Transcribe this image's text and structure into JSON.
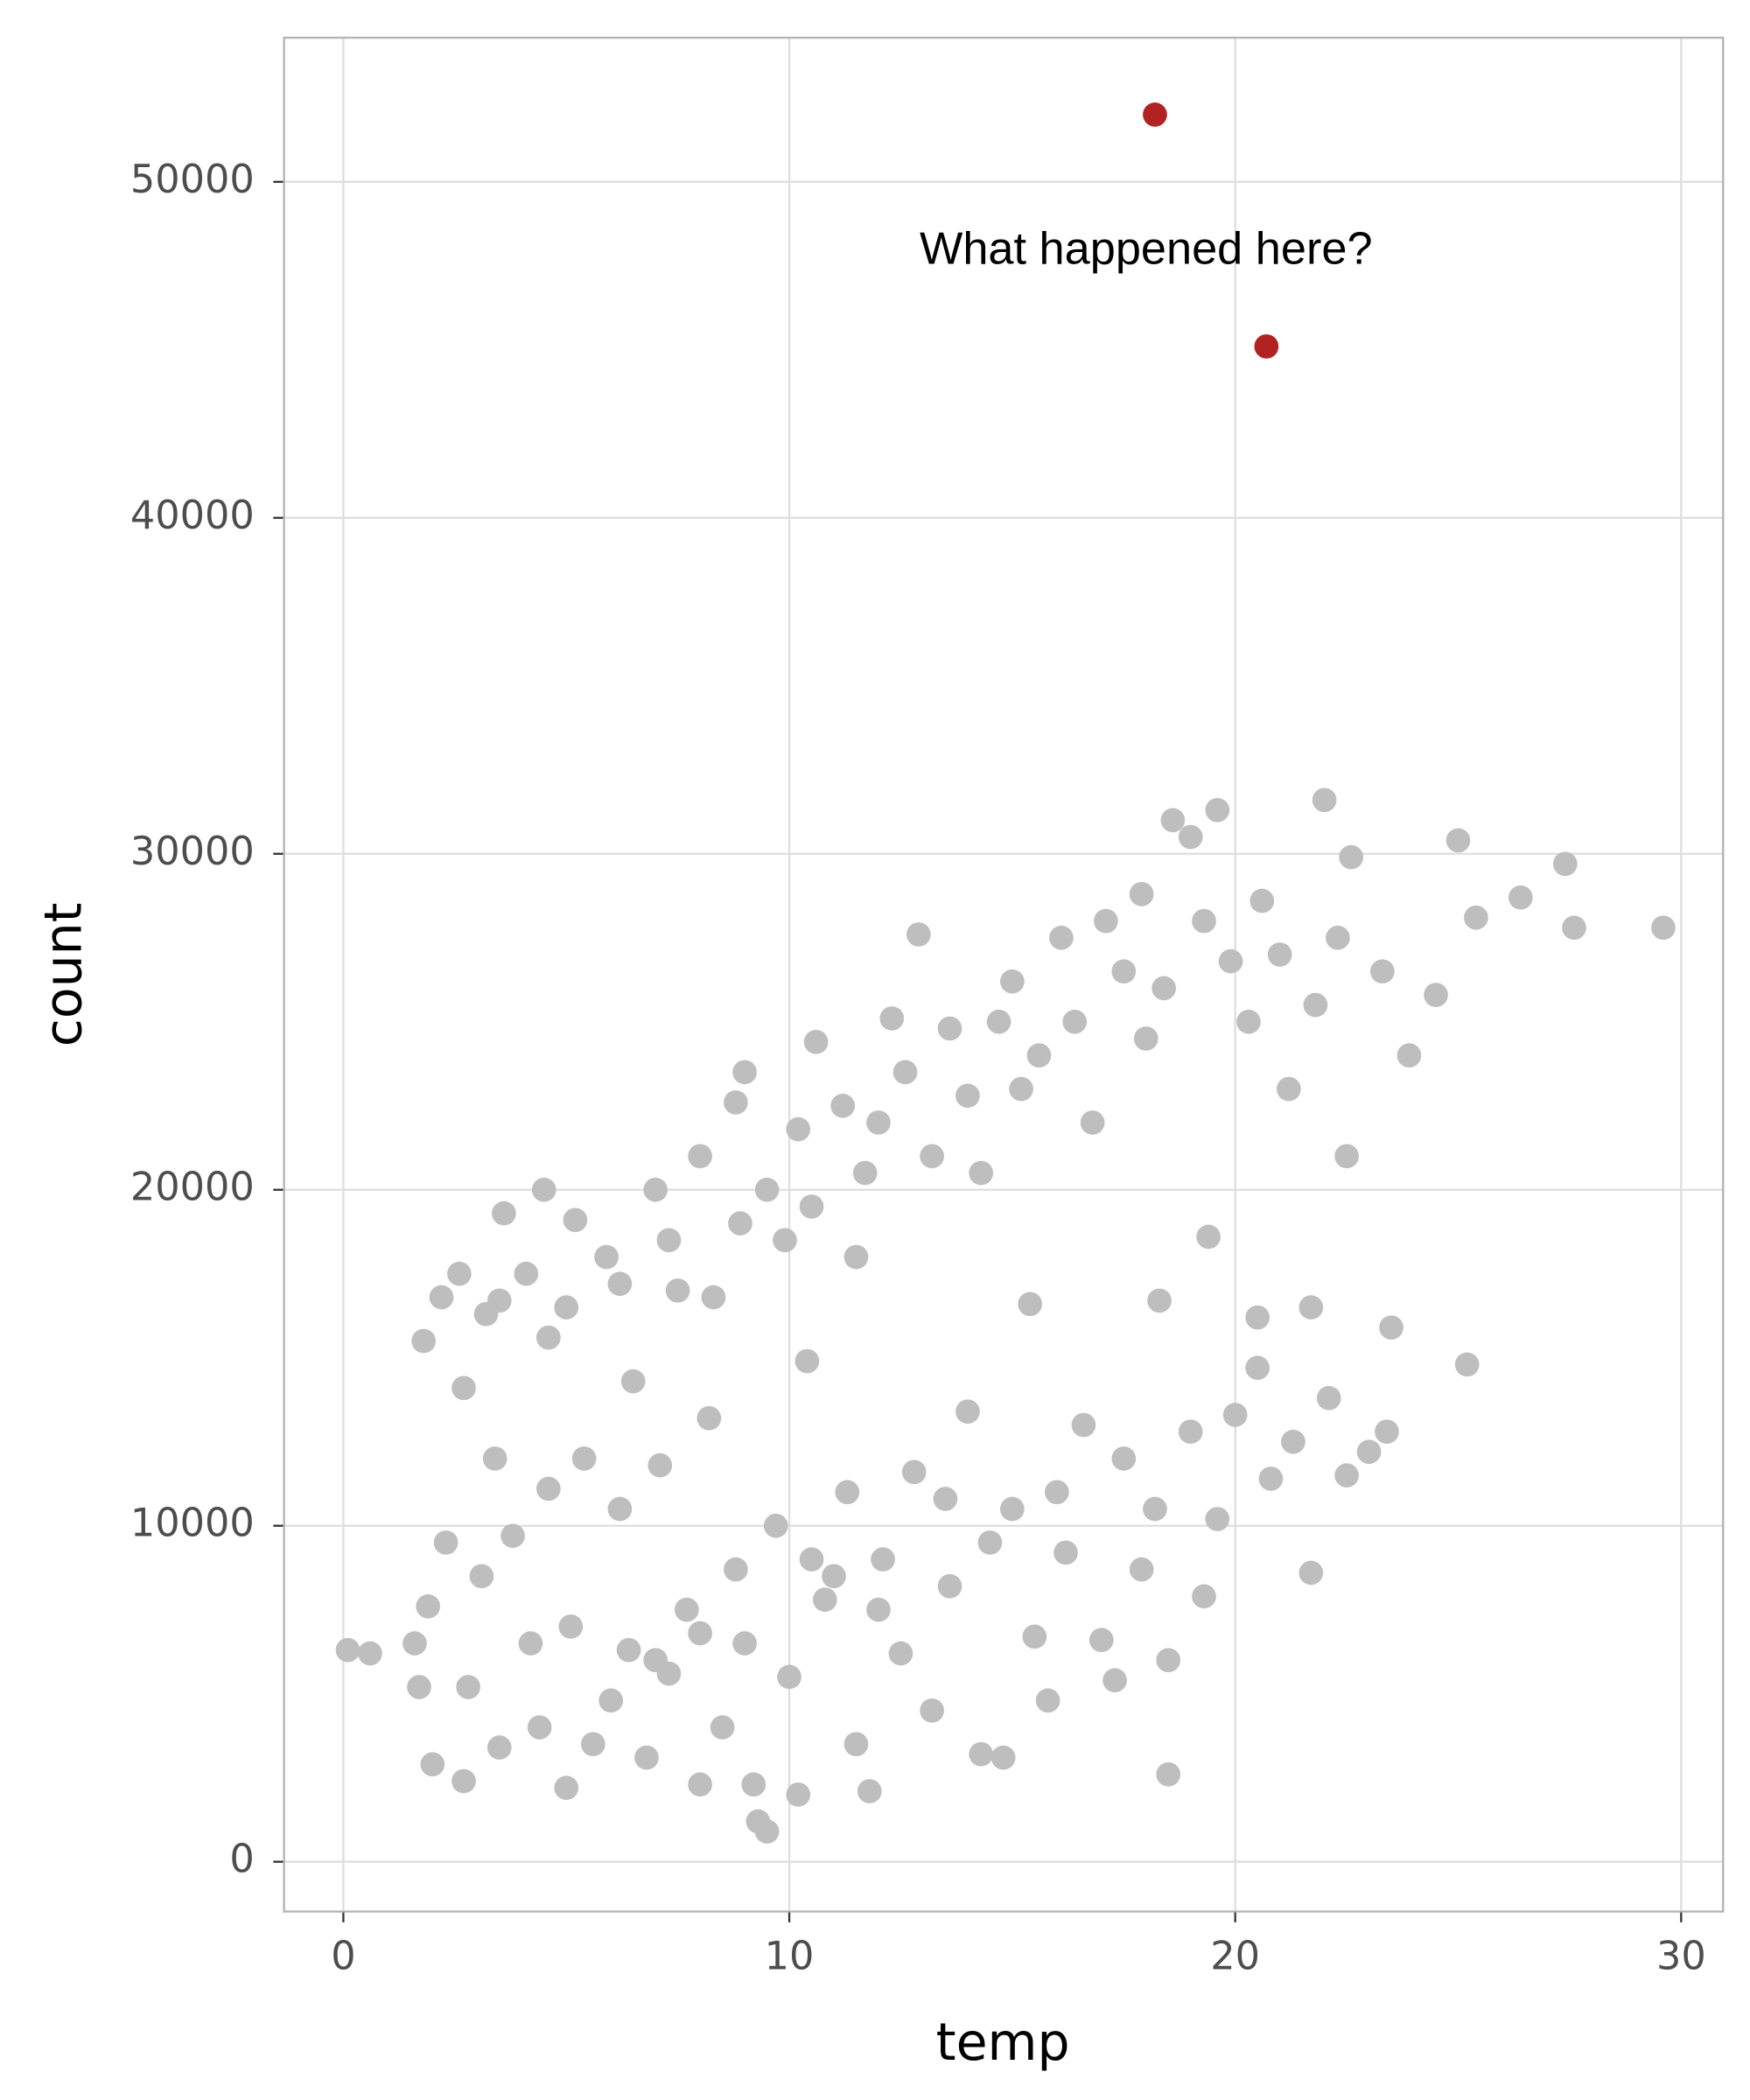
{
  "chart_data": {
    "type": "scatter",
    "x_label": "temp",
    "y_label": "count",
    "xlim": [
      -1.33,
      30.94
    ],
    "ylim": [
      -1482,
      54290
    ],
    "xticks": [
      0,
      10,
      20,
      30
    ],
    "yticks": [
      0,
      10000,
      20000,
      30000,
      40000,
      50000
    ],
    "grid": true,
    "annotation": {
      "text": "What happened here?",
      "x": 18,
      "y": 47920
    },
    "series": [
      {
        "color": "#bebebe",
        "x": [
          1.8,
          2.2,
          2.6,
          2.7,
          3.2,
          3.5,
          3.6,
          4.1,
          4.5,
          4.6,
          5.0,
          5.2,
          5.9,
          6.2,
          6.5,
          7.0,
          7.3,
          7.5,
          8.0,
          8.3,
          8.8,
          8.9,
          9.0,
          9.5,
          9.9,
          10.2,
          10.5,
          10.6,
          11.2,
          11.5,
          11.7,
          12.0,
          12.3,
          12.6,
          12.9,
          13.2,
          13.6,
          14.0,
          14.3,
          14.7,
          15.0,
          15.2,
          15.6,
          16.1,
          16.4,
          16.8,
          17.1,
          17.5,
          17.9,
          18.0,
          18.4,
          18.6,
          19.0,
          19.3,
          19.6,
          19.9,
          20.3,
          20.6,
          21.0,
          21.2,
          21.8,
          22.0,
          22.3,
          22.5,
          22.6,
          23.3,
          23.9,
          24.5,
          25.0,
          25.4,
          26.4,
          27.4,
          27.6,
          29.6,
          25.2,
          23.5,
          21.7,
          20.5,
          19.4,
          18.3,
          0.1,
          0.6,
          1.6,
          1.7,
          1.9,
          2.0,
          2.3,
          2.7,
          2.8,
          3.1,
          3.4,
          3.5,
          3.8,
          4.2,
          4.4,
          4.6,
          5.0,
          5.1,
          5.4,
          5.6,
          6.0,
          6.2,
          6.4,
          6.8,
          7.1,
          7.3,
          7.7,
          8.0,
          8.2,
          8.5,
          8.8,
          9.2,
          9.3,
          9.5,
          9.7,
          10.0,
          10.2,
          10.4,
          10.8,
          11.3,
          11.5,
          11.8,
          12.1,
          12.5,
          12.8,
          13.2,
          13.6,
          14.0,
          14.3,
          14.8,
          15.0,
          15.4,
          15.8,
          16.2,
          16.6,
          17.0,
          17.3,
          17.5,
          17.9,
          18.2,
          18.5,
          18.5,
          19.0,
          19.3,
          19.6,
          20.0,
          20.5,
          20.8,
          21.3,
          21.7,
          22.1,
          22.5,
          23.0,
          23.4,
          13.5,
          12.0,
          14.5,
          16.0,
          11.0,
          9.0,
          7.0,
          8.0,
          10.5,
          15.5
        ],
        "values": [
          15500,
          16800,
          17500,
          14100,
          16300,
          16700,
          19300,
          17500,
          20000,
          15600,
          16500,
          19100,
          18000,
          17200,
          14300,
          20000,
          18500,
          17000,
          21000,
          16800,
          22600,
          19000,
          23500,
          20000,
          18500,
          21800,
          19500,
          24400,
          22500,
          18000,
          20500,
          22000,
          25100,
          23500,
          27600,
          21000,
          24800,
          22800,
          20500,
          25000,
          26200,
          23000,
          24000,
          27500,
          25000,
          22000,
          28000,
          26500,
          28800,
          24500,
          26000,
          31000,
          30500,
          28000,
          31300,
          26800,
          25000,
          28600,
          27000,
          23000,
          25500,
          31600,
          27500,
          21000,
          29900,
          26500,
          24000,
          25800,
          30400,
          28100,
          28700,
          29700,
          27800,
          27800,
          14800,
          15900,
          16500,
          16200,
          18600,
          16700,
          6300,
          6200,
          6500,
          5200,
          7600,
          2900,
          9500,
          2400,
          5200,
          8500,
          12000,
          3400,
          9700,
          6500,
          4000,
          11100,
          2200,
          7000,
          12000,
          3500,
          4800,
          10500,
          6300,
          3100,
          11800,
          5600,
          7500,
          2300,
          13200,
          4000,
          8700,
          2300,
          1200,
          900,
          10000,
          5500,
          2000,
          14900,
          7800,
          11000,
          3500,
          2100,
          9000,
          6200,
          11600,
          4500,
          8200,
          13400,
          3200,
          3100,
          10500,
          16600,
          4800,
          9200,
          13000,
          6600,
          5400,
          12000,
          8700,
          10500,
          2600,
          6000,
          12800,
          7900,
          10200,
          13300,
          14700,
          11400,
          12500,
          8600,
          13800,
          11500,
          12200,
          12800,
          10800,
          7500,
          9500,
          11000,
          8500,
          6500,
          6000,
          6800,
          9000,
          6700
        ]
      },
      {
        "color": "#b22222",
        "x": [
          18.2,
          20.7
        ],
        "values": [
          52000,
          45100
        ]
      }
    ]
  }
}
